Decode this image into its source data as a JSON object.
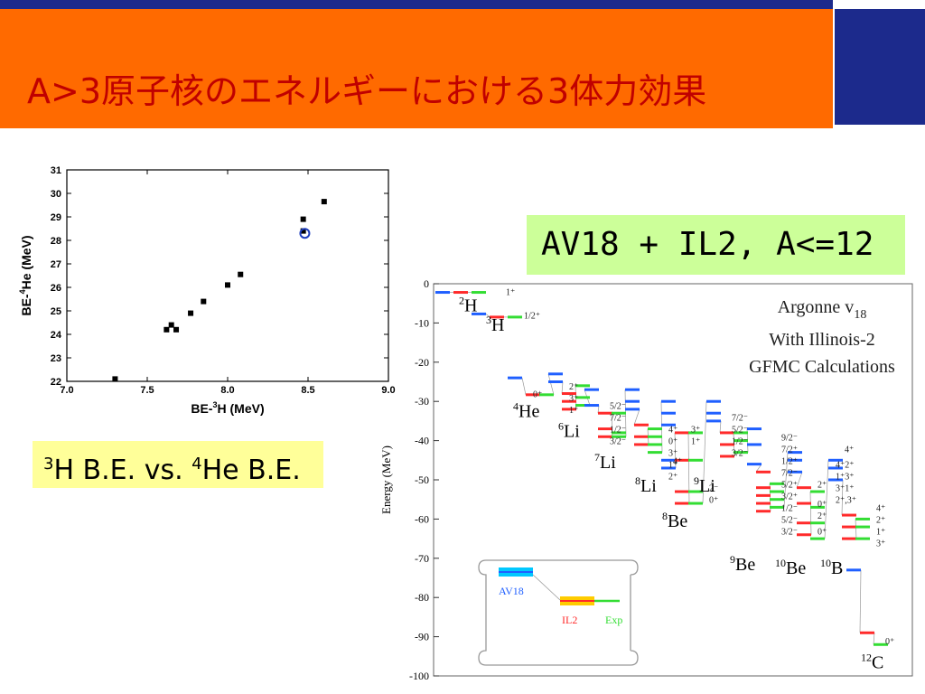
{
  "slide": {
    "title": "A>3原子核のエネルギーにおける3体力効果",
    "caption_scatter": {
      "sup1": "3",
      "t1": "H B.E. vs. ",
      "sup2": "4",
      "t2": "He B.E."
    },
    "caption_model": "AV18 + IL2,  A<=12"
  },
  "chart_data": [
    {
      "type": "scatter",
      "xlabel_parts": [
        "BE-",
        "3",
        "H  (MeV)"
      ],
      "ylabel_parts": [
        "BE-",
        "4",
        "He  (MeV)"
      ],
      "xlim": [
        7.0,
        9.0
      ],
      "ylim": [
        22,
        31
      ],
      "xticks": [
        "7.0",
        "7.5",
        "8.0",
        "8.5",
        "9.0"
      ],
      "yticks": [
        "22",
        "23",
        "24",
        "25",
        "26",
        "27",
        "28",
        "29",
        "30",
        "31"
      ],
      "points": [
        {
          "x": 7.3,
          "y": 22.1
        },
        {
          "x": 7.62,
          "y": 24.2
        },
        {
          "x": 7.65,
          "y": 24.4
        },
        {
          "x": 7.68,
          "y": 24.2
        },
        {
          "x": 7.77,
          "y": 24.9
        },
        {
          "x": 7.85,
          "y": 25.4
        },
        {
          "x": 8.0,
          "y": 26.1
        },
        {
          "x": 8.08,
          "y": 26.55
        },
        {
          "x": 8.47,
          "y": 28.4
        },
        {
          "x": 8.47,
          "y": 28.9
        },
        {
          "x": 8.6,
          "y": 29.65
        }
      ],
      "experiment": {
        "x": 8.48,
        "y": 28.3,
        "color": "#1f3fbf"
      }
    },
    {
      "type": "level-scheme",
      "ylabel": "Energy (MeV)",
      "ylim": [
        -100,
        0
      ],
      "yticks": [
        "0",
        "-10",
        "-20",
        "-30",
        "-40",
        "-50",
        "-60",
        "-70",
        "-80",
        "-90",
        "-100"
      ],
      "legend_title": [
        "Argonne v",
        "18",
        "With Illinois-2",
        "GFMC Calculations"
      ],
      "legend_box": {
        "av18": "AV18",
        "il2": "IL2",
        "exp": "Exp"
      },
      "colors": {
        "av18": "#1f5fff",
        "il2": "#ff2a2a",
        "exp": "#33dd33",
        "av18_box": "#00c8ff",
        "il2_box": "#ffcc00"
      },
      "nuclei": [
        {
          "label": "H",
          "mass": "2",
          "x": 0.08,
          "e": -7
        },
        {
          "label": "H",
          "mass": "3",
          "x": 0.14,
          "e": -12
        },
        {
          "label": "He",
          "mass": "4",
          "x": 0.2,
          "e": -34
        },
        {
          "label": "Li",
          "mass": "6",
          "x": 0.3,
          "e": -39
        },
        {
          "label": "Li",
          "mass": "7",
          "x": 0.38,
          "e": -47
        },
        {
          "label": "Li",
          "mass": "8",
          "x": 0.47,
          "e": -53
        },
        {
          "label": "Li",
          "mass": "9",
          "x": 0.6,
          "e": -53
        },
        {
          "label": "Be",
          "mass": "8",
          "x": 0.53,
          "e": -62
        },
        {
          "label": "Be",
          "mass": "9",
          "x": 0.68,
          "e": -73
        },
        {
          "label": "Be",
          "mass": "10",
          "x": 0.78,
          "e": -74
        },
        {
          "label": "B",
          "mass": "10",
          "x": 0.88,
          "e": -74
        },
        {
          "label": "C",
          "mass": "12",
          "x": 0.97,
          "e": -98
        }
      ],
      "spin_labels": [
        {
          "t": "1⁺",
          "x": 0.16,
          "e": -2
        },
        {
          "t": "1/2⁺",
          "x": 0.2,
          "e": -8
        },
        {
          "t": "0⁺",
          "x": 0.22,
          "e": -28
        },
        {
          "t": "2⁺",
          "x": 0.3,
          "e": -26
        },
        {
          "t": "3⁺",
          "x": 0.3,
          "e": -29
        },
        {
          "t": "1⁺",
          "x": 0.3,
          "e": -32
        },
        {
          "t": "5/2⁻",
          "x": 0.39,
          "e": -31
        },
        {
          "t": "7/2⁻",
          "x": 0.39,
          "e": -34
        },
        {
          "t": "1/2⁻",
          "x": 0.39,
          "e": -37
        },
        {
          "t": "3/2⁻",
          "x": 0.39,
          "e": -40
        },
        {
          "t": "4⁺",
          "x": 0.52,
          "e": -37
        },
        {
          "t": "0⁺",
          "x": 0.52,
          "e": -40
        },
        {
          "t": "3⁺",
          "x": 0.52,
          "e": -43
        },
        {
          "t": "1⁺",
          "x": 0.52,
          "e": -46
        },
        {
          "t": "2⁺",
          "x": 0.52,
          "e": -49
        },
        {
          "t": "3⁺",
          "x": 0.57,
          "e": -37
        },
        {
          "t": "1⁺",
          "x": 0.57,
          "e": -40
        },
        {
          "t": "4⁺",
          "x": 0.53,
          "e": -45
        },
        {
          "t": "2⁻",
          "x": 0.61,
          "e": -52
        },
        {
          "t": "0⁺",
          "x": 0.61,
          "e": -55
        },
        {
          "t": "7/2⁻",
          "x": 0.66,
          "e": -34
        },
        {
          "t": "5/2⁻",
          "x": 0.66,
          "e": -37
        },
        {
          "t": "1/2⁻",
          "x": 0.66,
          "e": -40
        },
        {
          "t": "3/2⁻",
          "x": 0.66,
          "e": -43
        },
        {
          "t": "9/2⁻",
          "x": 0.77,
          "e": -39
        },
        {
          "t": "7/2⁺",
          "x": 0.77,
          "e": -42
        },
        {
          "t": "1/2⁺",
          "x": 0.77,
          "e": -45
        },
        {
          "t": "7/2⁻",
          "x": 0.77,
          "e": -48
        },
        {
          "t": "5/2⁺",
          "x": 0.77,
          "e": -51
        },
        {
          "t": "3/2⁺",
          "x": 0.77,
          "e": -54
        },
        {
          "t": "1/2⁻",
          "x": 0.77,
          "e": -57
        },
        {
          "t": "5/2⁻",
          "x": 0.77,
          "e": -60
        },
        {
          "t": "3/2⁻",
          "x": 0.77,
          "e": -63
        },
        {
          "t": "2⁺",
          "x": 0.85,
          "e": -51
        },
        {
          "t": "0⁺",
          "x": 0.85,
          "e": -56
        },
        {
          "t": "2⁺",
          "x": 0.85,
          "e": -59
        },
        {
          "t": "0⁺",
          "x": 0.85,
          "e": -63
        },
        {
          "t": "4⁺",
          "x": 0.91,
          "e": -42
        },
        {
          "t": "4⁺2⁺",
          "x": 0.89,
          "e": -46
        },
        {
          "t": "1⁺3⁺",
          "x": 0.89,
          "e": -49
        },
        {
          "t": "3⁺1⁺",
          "x": 0.89,
          "e": -52
        },
        {
          "t": "2⁺,3⁺",
          "x": 0.89,
          "e": -55
        },
        {
          "t": "4⁺",
          "x": 0.98,
          "e": -57
        },
        {
          "t": "2⁺",
          "x": 0.98,
          "e": -60
        },
        {
          "t": "1⁺",
          "x": 0.98,
          "e": -63
        },
        {
          "t": "3⁺",
          "x": 0.98,
          "e": -66
        },
        {
          "t": "0⁺",
          "x": 1.0,
          "e": -91
        }
      ],
      "levels": [
        {
          "x": 0.02,
          "e": -2.2,
          "c": "av18"
        },
        {
          "x": 0.06,
          "e": -2.2,
          "c": "il2"
        },
        {
          "x": 0.1,
          "e": -2.2,
          "c": "exp"
        },
        {
          "x": 0.1,
          "e": -7.7,
          "c": "av18"
        },
        {
          "x": 0.14,
          "e": -8.5,
          "c": "il2"
        },
        {
          "x": 0.18,
          "e": -8.5,
          "c": "exp"
        },
        {
          "x": 0.18,
          "e": -24,
          "c": "av18"
        },
        {
          "x": 0.22,
          "e": -28.3,
          "c": "il2"
        },
        {
          "x": 0.25,
          "e": -28.3,
          "c": "exp"
        },
        {
          "x": 0.27,
          "e": -23,
          "c": "av18"
        },
        {
          "x": 0.27,
          "e": -25,
          "c": "av18"
        },
        {
          "x": 0.3,
          "e": -28,
          "c": "il2"
        },
        {
          "x": 0.3,
          "e": -30,
          "c": "il2"
        },
        {
          "x": 0.3,
          "e": -32,
          "c": "il2"
        },
        {
          "x": 0.33,
          "e": -26,
          "c": "exp"
        },
        {
          "x": 0.33,
          "e": -29,
          "c": "exp"
        },
        {
          "x": 0.33,
          "e": -31,
          "c": "exp"
        },
        {
          "x": 0.35,
          "e": -27,
          "c": "av18"
        },
        {
          "x": 0.35,
          "e": -31,
          "c": "av18"
        },
        {
          "x": 0.38,
          "e": -33,
          "c": "il2"
        },
        {
          "x": 0.38,
          "e": -37,
          "c": "il2"
        },
        {
          "x": 0.38,
          "e": -39,
          "c": "il2"
        },
        {
          "x": 0.41,
          "e": -33,
          "c": "exp"
        },
        {
          "x": 0.41,
          "e": -38,
          "c": "exp"
        },
        {
          "x": 0.41,
          "e": -39,
          "c": "exp"
        },
        {
          "x": 0.44,
          "e": -27,
          "c": "av18"
        },
        {
          "x": 0.44,
          "e": -30,
          "c": "av18"
        },
        {
          "x": 0.44,
          "e": -32,
          "c": "av18"
        },
        {
          "x": 0.46,
          "e": -36,
          "c": "il2"
        },
        {
          "x": 0.46,
          "e": -39,
          "c": "il2"
        },
        {
          "x": 0.46,
          "e": -41,
          "c": "il2"
        },
        {
          "x": 0.49,
          "e": -37,
          "c": "exp"
        },
        {
          "x": 0.49,
          "e": -39,
          "c": "exp"
        },
        {
          "x": 0.49,
          "e": -41,
          "c": "exp"
        },
        {
          "x": 0.49,
          "e": -43,
          "c": "exp"
        },
        {
          "x": 0.52,
          "e": -30,
          "c": "av18"
        },
        {
          "x": 0.52,
          "e": -33,
          "c": "av18"
        },
        {
          "x": 0.52,
          "e": -36,
          "c": "av18"
        },
        {
          "x": 0.52,
          "e": -45,
          "c": "av18"
        },
        {
          "x": 0.52,
          "e": -47,
          "c": "av18"
        },
        {
          "x": 0.55,
          "e": -38,
          "c": "il2"
        },
        {
          "x": 0.55,
          "e": -45,
          "c": "il2"
        },
        {
          "x": 0.55,
          "e": -53,
          "c": "il2"
        },
        {
          "x": 0.55,
          "e": -56,
          "c": "il2"
        },
        {
          "x": 0.58,
          "e": -38,
          "c": "exp"
        },
        {
          "x": 0.58,
          "e": -45,
          "c": "exp"
        },
        {
          "x": 0.58,
          "e": -53,
          "c": "exp"
        },
        {
          "x": 0.58,
          "e": -56,
          "c": "exp"
        },
        {
          "x": 0.62,
          "e": -30,
          "c": "av18"
        },
        {
          "x": 0.62,
          "e": -33,
          "c": "av18"
        },
        {
          "x": 0.62,
          "e": -35,
          "c": "av18"
        },
        {
          "x": 0.65,
          "e": -38,
          "c": "il2"
        },
        {
          "x": 0.65,
          "e": -41,
          "c": "il2"
        },
        {
          "x": 0.65,
          "e": -44,
          "c": "il2"
        },
        {
          "x": 0.68,
          "e": -38,
          "c": "exp"
        },
        {
          "x": 0.68,
          "e": -40,
          "c": "exp"
        },
        {
          "x": 0.68,
          "e": -43,
          "c": "exp"
        },
        {
          "x": 0.71,
          "e": -37,
          "c": "av18"
        },
        {
          "x": 0.71,
          "e": -41,
          "c": "av18"
        },
        {
          "x": 0.71,
          "e": -46,
          "c": "av18"
        },
        {
          "x": 0.73,
          "e": -48,
          "c": "il2"
        },
        {
          "x": 0.73,
          "e": -52,
          "c": "il2"
        },
        {
          "x": 0.73,
          "e": -54,
          "c": "il2"
        },
        {
          "x": 0.73,
          "e": -56,
          "c": "il2"
        },
        {
          "x": 0.73,
          "e": -58,
          "c": "il2"
        },
        {
          "x": 0.76,
          "e": -51,
          "c": "exp"
        },
        {
          "x": 0.76,
          "e": -53,
          "c": "exp"
        },
        {
          "x": 0.76,
          "e": -55,
          "c": "exp"
        },
        {
          "x": 0.76,
          "e": -57,
          "c": "exp"
        },
        {
          "x": 0.8,
          "e": -43,
          "c": "av18"
        },
        {
          "x": 0.8,
          "e": -45,
          "c": "av18"
        },
        {
          "x": 0.8,
          "e": -48,
          "c": "av18"
        },
        {
          "x": 0.82,
          "e": -52,
          "c": "il2"
        },
        {
          "x": 0.82,
          "e": -56,
          "c": "il2"
        },
        {
          "x": 0.82,
          "e": -61,
          "c": "il2"
        },
        {
          "x": 0.82,
          "e": -64,
          "c": "il2"
        },
        {
          "x": 0.85,
          "e": -53,
          "c": "exp"
        },
        {
          "x": 0.85,
          "e": -57,
          "c": "exp"
        },
        {
          "x": 0.85,
          "e": -61,
          "c": "exp"
        },
        {
          "x": 0.85,
          "e": -65,
          "c": "exp"
        },
        {
          "x": 0.89,
          "e": -45,
          "c": "av18"
        },
        {
          "x": 0.89,
          "e": -47,
          "c": "av18"
        },
        {
          "x": 0.89,
          "e": -50,
          "c": "av18"
        },
        {
          "x": 0.92,
          "e": -59,
          "c": "il2"
        },
        {
          "x": 0.92,
          "e": -62,
          "c": "il2"
        },
        {
          "x": 0.92,
          "e": -65,
          "c": "il2"
        },
        {
          "x": 0.95,
          "e": -60,
          "c": "exp"
        },
        {
          "x": 0.95,
          "e": -62,
          "c": "exp"
        },
        {
          "x": 0.95,
          "e": -65,
          "c": "exp"
        },
        {
          "x": 0.93,
          "e": -73,
          "c": "av18"
        },
        {
          "x": 0.96,
          "e": -89,
          "c": "il2"
        },
        {
          "x": 0.99,
          "e": -92,
          "c": "exp"
        }
      ]
    }
  ]
}
